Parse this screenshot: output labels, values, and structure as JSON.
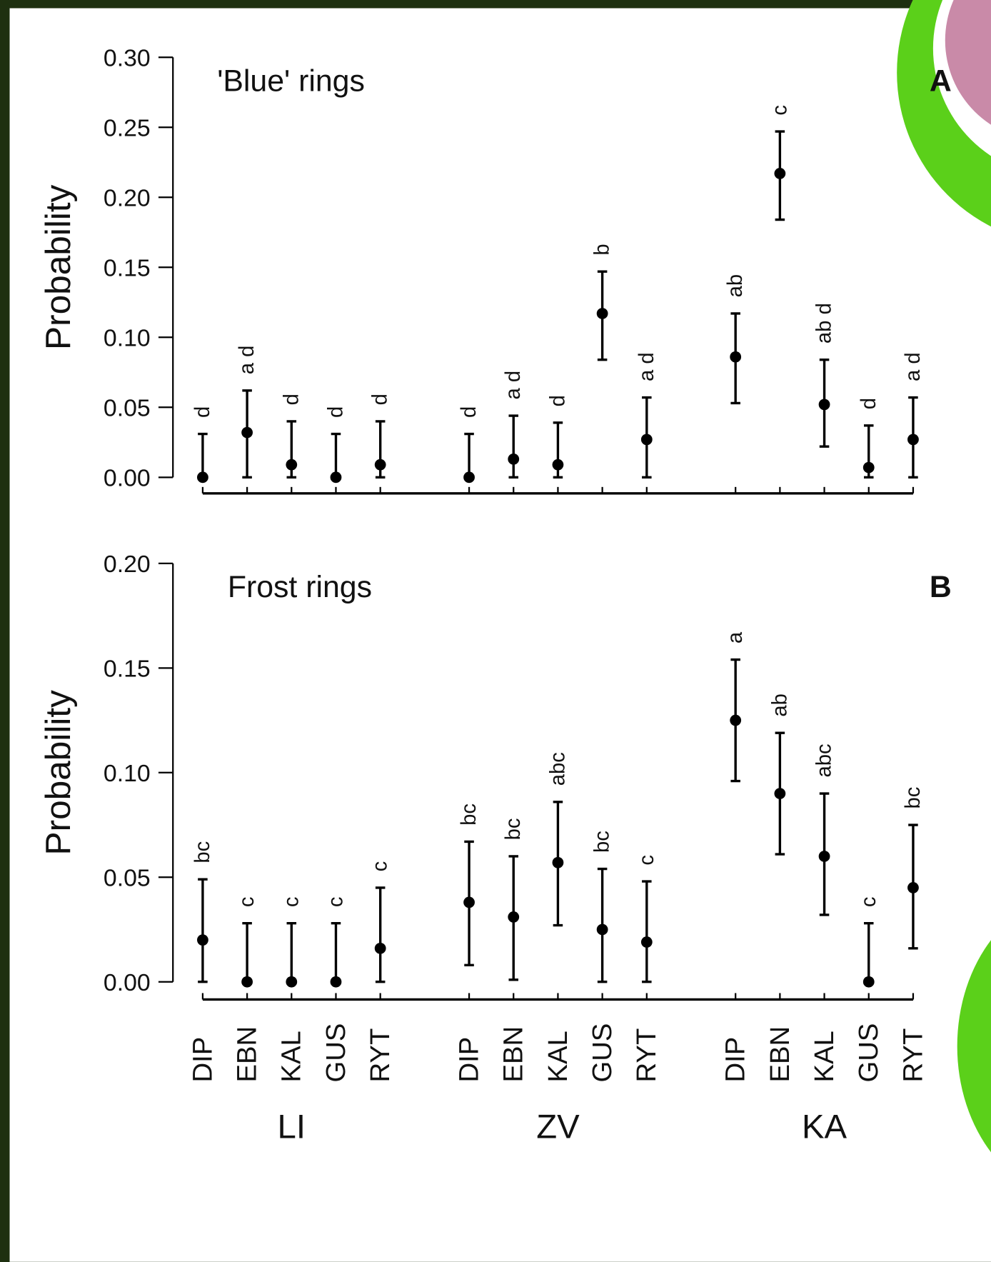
{
  "x_axis": {
    "categories": [
      "DIP",
      "EBN",
      "KAL",
      "GUS",
      "RYT",
      "DIP",
      "EBN",
      "KAL",
      "GUS",
      "RYT",
      "DIP",
      "EBN",
      "KAL",
      "GUS",
      "RYT"
    ],
    "groups": [
      "LI",
      "ZV",
      "KA"
    ]
  },
  "chart_data": [
    {
      "type": "errorbar",
      "title": "'Blue' rings",
      "panel": "A",
      "y_label": "Probability",
      "ylim": [
        0,
        0.3
      ],
      "yticks": [
        {
          "value": 0,
          "label": "0.00"
        },
        {
          "value": 0.05,
          "label": "0.05"
        },
        {
          "value": 0.1,
          "label": "0.10"
        },
        {
          "value": 0.15,
          "label": "0.15"
        },
        {
          "value": 0.2,
          "label": "0.20"
        },
        {
          "value": 0.25,
          "label": "0.25"
        },
        {
          "value": 0.3,
          "label": "0.30"
        }
      ],
      "values": [
        0,
        0.032,
        0.009,
        0,
        0.009,
        0,
        0.013,
        0.009,
        0.117,
        0.027,
        0.086,
        0.217,
        0.052,
        0.007,
        0.027
      ],
      "lower": [
        0,
        0,
        0,
        0,
        0,
        0,
        0,
        0,
        0.084,
        0,
        0.053,
        0.184,
        0.022,
        0,
        0
      ],
      "upper": [
        0.031,
        0.062,
        0.04,
        0.031,
        0.04,
        0.031,
        0.044,
        0.039,
        0.147,
        0.057,
        0.117,
        0.247,
        0.084,
        0.037,
        0.057
      ],
      "annotations": [
        "d",
        "a d",
        "d",
        "d",
        "d",
        "d",
        "a d",
        "d",
        "b",
        "a d",
        "ab",
        "c",
        "ab d",
        "d",
        "a d"
      ],
      "color": "#000000"
    },
    {
      "type": "errorbar",
      "title": "Frost rings",
      "panel": "B",
      "y_label": "Probability",
      "ylim": [
        0,
        0.2
      ],
      "yticks": [
        {
          "value": 0,
          "label": "0.00"
        },
        {
          "value": 0.05,
          "label": "0.05"
        },
        {
          "value": 0.1,
          "label": "0.10"
        },
        {
          "value": 0.15,
          "label": "0.15"
        },
        {
          "value": 0.2,
          "label": "0.20"
        }
      ],
      "values": [
        0.02,
        0,
        0,
        0,
        0.016,
        0.038,
        0.031,
        0.057,
        0.025,
        0.019,
        0.125,
        0.09,
        0.06,
        0,
        0.045
      ],
      "lower": [
        0,
        0,
        0,
        0,
        0,
        0.008,
        0.001,
        0.027,
        0,
        0,
        0.096,
        0.061,
        0.032,
        0,
        0.016
      ],
      "upper": [
        0.049,
        0.028,
        0.028,
        0.028,
        0.045,
        0.067,
        0.06,
        0.086,
        0.054,
        0.048,
        0.154,
        0.119,
        0.09,
        0.028,
        0.075
      ],
      "annotations": [
        "bc",
        "c",
        "c",
        "c",
        "c",
        "bc",
        "bc",
        "abc",
        "bc",
        "c",
        "a",
        "ab",
        "abc",
        "c",
        "bc"
      ],
      "color": "#000000"
    }
  ]
}
